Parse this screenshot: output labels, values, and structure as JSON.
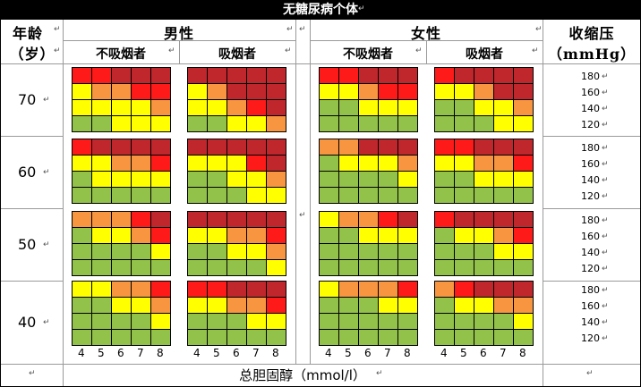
{
  "title": "无糖尿病个体",
  "headers": {
    "age": "年龄",
    "age_unit": "（岁）",
    "male": "男性",
    "female": "女性",
    "non_smoker": "不吸烟者",
    "smoker": "吸烟者",
    "bp": "收缩压",
    "bp_unit": "（mmHg）",
    "cholesterol": "总胆固醇（mmol/l）"
  },
  "ages": [
    "70",
    "60",
    "50",
    "40"
  ],
  "bp_levels": [
    "180",
    "160",
    "140",
    "120"
  ],
  "chol_ticks": [
    "4",
    "5",
    "6",
    "7",
    "8"
  ],
  "colors": {
    "G": "#92c24a",
    "Y": "#ffff00",
    "O": "#f79540",
    "R": "#ff1a1a",
    "D": "#c0272d"
  },
  "chart_data": {
    "type": "heatmap",
    "legend": "G=green, Y=yellow, O=orange, R=red, D=dark red",
    "panels": [
      {
        "age": "70",
        "sex": "男性",
        "smoking": "不吸烟者",
        "rows": [
          "RRDDD",
          "YOORR",
          "YYYYO",
          "GGYYY"
        ]
      },
      {
        "age": "70",
        "sex": "男性",
        "smoking": "吸烟者",
        "rows": [
          "DDDDD",
          "YODDD",
          "YYORD",
          "GGYYO"
        ]
      },
      {
        "age": "70",
        "sex": "女性",
        "smoking": "不吸烟者",
        "rows": [
          "RRDDD",
          "YYORR",
          "GGYYY",
          "GGGGG"
        ]
      },
      {
        "age": "70",
        "sex": "女性",
        "smoking": "吸烟者",
        "rows": [
          "RDDDD",
          "YYODD",
          "GGYYO",
          "GGGYY"
        ]
      },
      {
        "age": "60",
        "sex": "男性",
        "smoking": "不吸烟者",
        "rows": [
          "RDDDD",
          "YYOOR",
          "GYYYY",
          "GGGGG"
        ]
      },
      {
        "age": "60",
        "sex": "男性",
        "smoking": "吸烟者",
        "rows": [
          "DDDDD",
          "YYYRD",
          "GGYYO",
          "GGGYY"
        ]
      },
      {
        "age": "60",
        "sex": "女性",
        "smoking": "不吸烟者",
        "rows": [
          "OODDD",
          "GYYYO",
          "GGGGY",
          "GGGGG"
        ]
      },
      {
        "age": "60",
        "sex": "女性",
        "smoking": "吸烟者",
        "rows": [
          "RRDDD",
          "YYOOR",
          "GGYYY",
          "GGGGG"
        ]
      },
      {
        "age": "50",
        "sex": "男性",
        "smoking": "不吸烟者",
        "rows": [
          "OOORD",
          "GYYOR",
          "GGGGY",
          "GGGGG"
        ]
      },
      {
        "age": "50",
        "sex": "男性",
        "smoking": "吸烟者",
        "rows": [
          "DDDDD",
          "YYOOR",
          "GGYYO",
          "GGGGY"
        ]
      },
      {
        "age": "50",
        "sex": "女性",
        "smoking": "不吸烟者",
        "rows": [
          "YOORD",
          "GGYYY",
          "GGGGG",
          "GGGGG"
        ]
      },
      {
        "age": "50",
        "sex": "女性",
        "smoking": "吸烟者",
        "rows": [
          "RDDDD",
          "GYYOR",
          "GGGYY",
          "GGGGG"
        ]
      },
      {
        "age": "40",
        "sex": "男性",
        "smoking": "不吸烟者",
        "rows": [
          "YYOOR",
          "GGYYO",
          "GGGGY",
          "GGGGG"
        ]
      },
      {
        "age": "40",
        "sex": "男性",
        "smoking": "吸烟者",
        "rows": [
          "RRDDD",
          "YYOOR",
          "GGGYY",
          "GGGGG"
        ]
      },
      {
        "age": "40",
        "sex": "女性",
        "smoking": "不吸烟者",
        "rows": [
          "YOOOR",
          "GGGYY",
          "GGGGG",
          "GGGGG"
        ]
      },
      {
        "age": "40",
        "sex": "女性",
        "smoking": "吸烟者",
        "rows": [
          "ORDDD",
          "GYYOO",
          "GGGGY",
          "GGGGG"
        ]
      }
    ]
  }
}
